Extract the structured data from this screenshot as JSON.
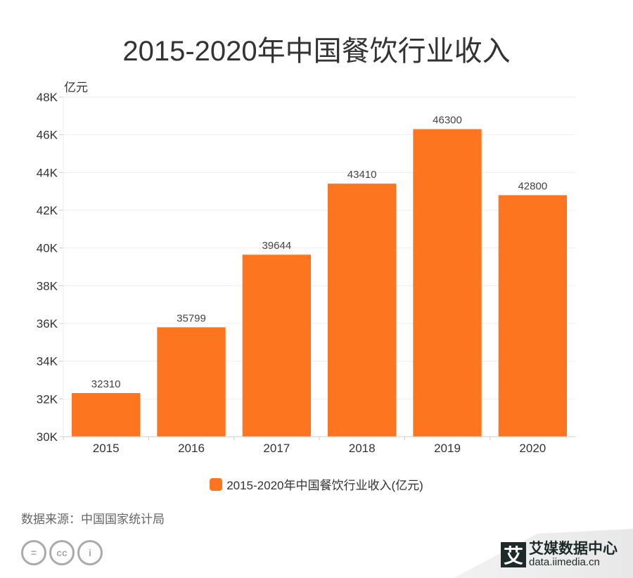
{
  "chart_data": {
    "type": "bar",
    "title": "2015-2020年中国餐饮行业收入",
    "ylabel": "亿元",
    "categories": [
      "2015",
      "2016",
      "2017",
      "2018",
      "2019",
      "2020"
    ],
    "series": [
      {
        "name": "2015-2020年中国餐饮行业收入(亿元)",
        "values": [
          32310,
          35799,
          39644,
          43410,
          46300,
          42800
        ]
      }
    ],
    "ylim": [
      30000,
      48000
    ],
    "yticks": [
      "30K",
      "32K",
      "34K",
      "36K",
      "38K",
      "40K",
      "42K",
      "44K",
      "46K",
      "48K"
    ],
    "grid": true,
    "legend": "bottom",
    "color": "#fd761f"
  },
  "source": "数据来源：中国国家统计局",
  "brand": {
    "logo": "艾",
    "name": "艾媒数据中心",
    "url": "data.iimedia.cn"
  },
  "license_icons": [
    "equal-icon",
    "cc-icon",
    "person-icon"
  ]
}
